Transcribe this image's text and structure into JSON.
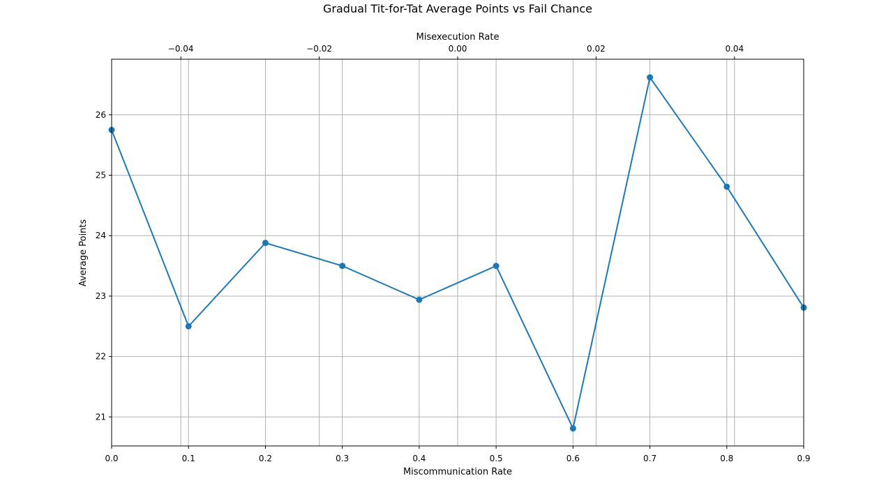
{
  "chart_data": {
    "type": "line",
    "title": "Gradual Tit-for-Tat Average Points vs Fail Chance",
    "xlabel": "Miscommunication Rate",
    "ylabel": "Average Points",
    "x2label": "Misexecution Rate",
    "x": [
      0.0,
      0.1,
      0.2,
      0.3,
      0.4,
      0.5,
      0.6,
      0.7,
      0.8,
      0.9
    ],
    "series": [
      {
        "values": [
          25.75,
          22.5,
          23.88,
          23.5,
          22.94,
          23.5,
          20.81,
          26.62,
          24.81,
          22.81
        ],
        "color": "#1f77b4",
        "marker": "circle"
      }
    ],
    "xlim": [
      0.0,
      0.9
    ],
    "ylim": [
      20.52,
      26.92
    ],
    "x2lim": [
      -0.05,
      0.05
    ],
    "xticks": [
      0.0,
      0.1,
      0.2,
      0.3,
      0.4,
      0.5,
      0.6,
      0.7,
      0.8,
      0.9
    ],
    "xtick_labels": [
      "0.0",
      "0.1",
      "0.2",
      "0.3",
      "0.4",
      "0.5",
      "0.6",
      "0.7",
      "0.8",
      "0.9"
    ],
    "yticks": [
      21,
      22,
      23,
      24,
      25,
      26
    ],
    "ytick_labels": [
      "21",
      "22",
      "23",
      "24",
      "25",
      "26"
    ],
    "x2ticks": [
      -0.04,
      -0.02,
      0.0,
      0.02,
      0.04
    ],
    "x2tick_labels": [
      "−0.04",
      "−0.02",
      "0.00",
      "0.02",
      "0.04"
    ],
    "grid": true
  }
}
